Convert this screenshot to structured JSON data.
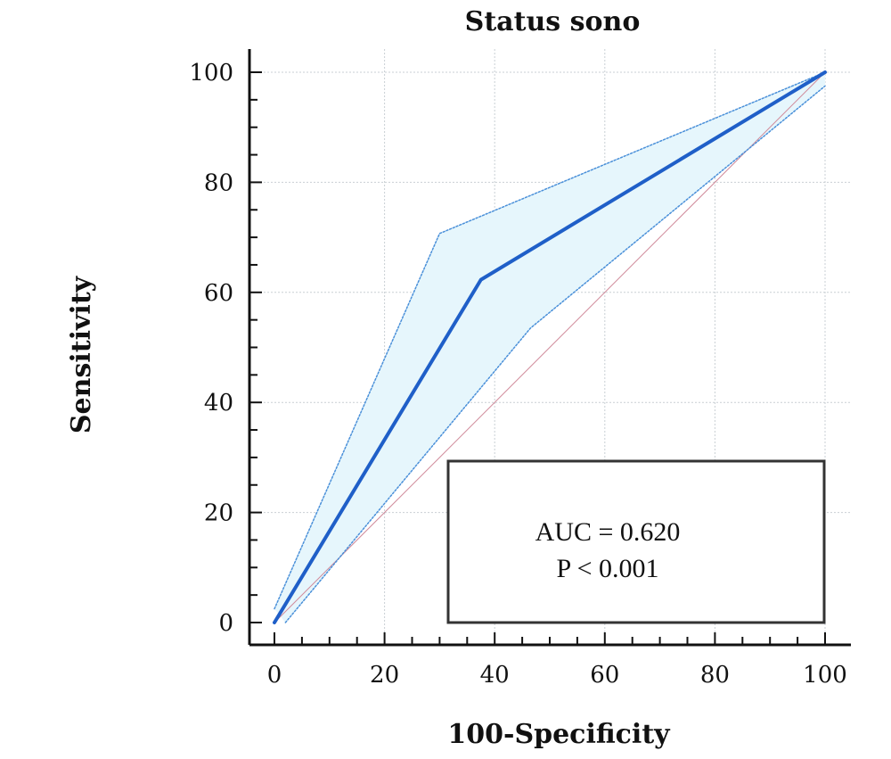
{
  "chart_data": {
    "type": "line",
    "title": "Status sono",
    "xlabel": "100-Specificity",
    "ylabel": "Sensitivity",
    "xlim": [
      0,
      100
    ],
    "ylim": [
      0,
      100
    ],
    "x_ticks": [
      "0",
      "20",
      "40",
      "60",
      "80",
      "100"
    ],
    "y_ticks": [
      "0",
      "20",
      "40",
      "60",
      "80",
      "100"
    ],
    "grid": true,
    "series": [
      {
        "role": "roc-curve",
        "x": [
          0,
          37.5,
          100
        ],
        "y": [
          0,
          62.3,
          100
        ],
        "color": "#1f5fc8"
      },
      {
        "role": "ci-upper",
        "x": [
          0,
          30,
          100
        ],
        "y": [
          2.5,
          70.7,
          100
        ],
        "color": "#4a90d9"
      },
      {
        "role": "ci-lower",
        "x": [
          2,
          46.5,
          100
        ],
        "y": [
          0,
          53.5,
          97.5
        ],
        "color": "#4a90d9"
      },
      {
        "role": "reference-diagonal",
        "x": [
          0,
          100
        ],
        "y": [
          0,
          100
        ],
        "color": "#d08a9a"
      }
    ],
    "ci_fill_color": "#e6f6fc",
    "annotations": {
      "auc": "AUC = 0.620",
      "p": "P < 0.001"
    }
  }
}
